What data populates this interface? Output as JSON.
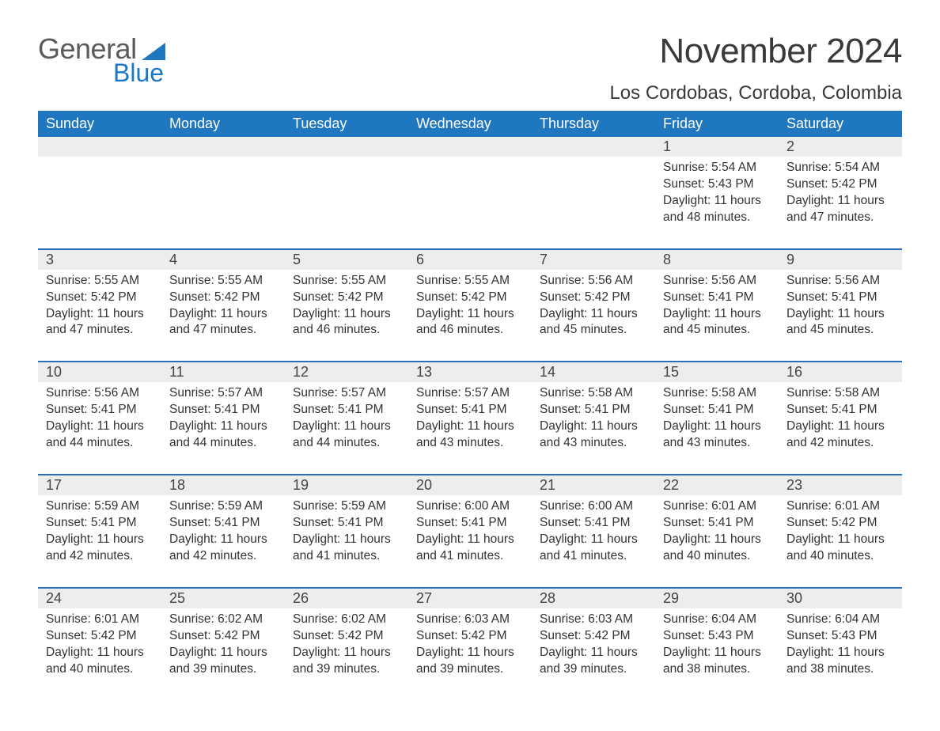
{
  "brand": {
    "part1": "General",
    "part2": "Blue",
    "triangle_color": "#1f77c0"
  },
  "title": "November 2024",
  "location": "Los Cordobas, Cordoba, Colombia",
  "days_of_week": [
    "Sunday",
    "Monday",
    "Tuesday",
    "Wednesday",
    "Thursday",
    "Friday",
    "Saturday"
  ],
  "colors": {
    "header_bg": "#1f77c0",
    "header_text": "#ffffff",
    "row_gray": "#eceeee",
    "row_border": "#2a6db8",
    "text": "#333333"
  },
  "weeks": [
    {
      "days": [
        {
          "num": "",
          "empty": true
        },
        {
          "num": "",
          "empty": true
        },
        {
          "num": "",
          "empty": true
        },
        {
          "num": "",
          "empty": true
        },
        {
          "num": "",
          "empty": true
        },
        {
          "num": "1",
          "sunrise": "Sunrise: 5:54 AM",
          "sunset": "Sunset: 5:43 PM",
          "daylight1": "Daylight: 11 hours",
          "daylight2": "and 48 minutes."
        },
        {
          "num": "2",
          "sunrise": "Sunrise: 5:54 AM",
          "sunset": "Sunset: 5:42 PM",
          "daylight1": "Daylight: 11 hours",
          "daylight2": "and 47 minutes."
        }
      ]
    },
    {
      "days": [
        {
          "num": "3",
          "sunrise": "Sunrise: 5:55 AM",
          "sunset": "Sunset: 5:42 PM",
          "daylight1": "Daylight: 11 hours",
          "daylight2": "and 47 minutes."
        },
        {
          "num": "4",
          "sunrise": "Sunrise: 5:55 AM",
          "sunset": "Sunset: 5:42 PM",
          "daylight1": "Daylight: 11 hours",
          "daylight2": "and 47 minutes."
        },
        {
          "num": "5",
          "sunrise": "Sunrise: 5:55 AM",
          "sunset": "Sunset: 5:42 PM",
          "daylight1": "Daylight: 11 hours",
          "daylight2": "and 46 minutes."
        },
        {
          "num": "6",
          "sunrise": "Sunrise: 5:55 AM",
          "sunset": "Sunset: 5:42 PM",
          "daylight1": "Daylight: 11 hours",
          "daylight2": "and 46 minutes."
        },
        {
          "num": "7",
          "sunrise": "Sunrise: 5:56 AM",
          "sunset": "Sunset: 5:42 PM",
          "daylight1": "Daylight: 11 hours",
          "daylight2": "and 45 minutes."
        },
        {
          "num": "8",
          "sunrise": "Sunrise: 5:56 AM",
          "sunset": "Sunset: 5:41 PM",
          "daylight1": "Daylight: 11 hours",
          "daylight2": "and 45 minutes."
        },
        {
          "num": "9",
          "sunrise": "Sunrise: 5:56 AM",
          "sunset": "Sunset: 5:41 PM",
          "daylight1": "Daylight: 11 hours",
          "daylight2": "and 45 minutes."
        }
      ]
    },
    {
      "days": [
        {
          "num": "10",
          "sunrise": "Sunrise: 5:56 AM",
          "sunset": "Sunset: 5:41 PM",
          "daylight1": "Daylight: 11 hours",
          "daylight2": "and 44 minutes."
        },
        {
          "num": "11",
          "sunrise": "Sunrise: 5:57 AM",
          "sunset": "Sunset: 5:41 PM",
          "daylight1": "Daylight: 11 hours",
          "daylight2": "and 44 minutes."
        },
        {
          "num": "12",
          "sunrise": "Sunrise: 5:57 AM",
          "sunset": "Sunset: 5:41 PM",
          "daylight1": "Daylight: 11 hours",
          "daylight2": "and 44 minutes."
        },
        {
          "num": "13",
          "sunrise": "Sunrise: 5:57 AM",
          "sunset": "Sunset: 5:41 PM",
          "daylight1": "Daylight: 11 hours",
          "daylight2": "and 43 minutes."
        },
        {
          "num": "14",
          "sunrise": "Sunrise: 5:58 AM",
          "sunset": "Sunset: 5:41 PM",
          "daylight1": "Daylight: 11 hours",
          "daylight2": "and 43 minutes."
        },
        {
          "num": "15",
          "sunrise": "Sunrise: 5:58 AM",
          "sunset": "Sunset: 5:41 PM",
          "daylight1": "Daylight: 11 hours",
          "daylight2": "and 43 minutes."
        },
        {
          "num": "16",
          "sunrise": "Sunrise: 5:58 AM",
          "sunset": "Sunset: 5:41 PM",
          "daylight1": "Daylight: 11 hours",
          "daylight2": "and 42 minutes."
        }
      ]
    },
    {
      "days": [
        {
          "num": "17",
          "sunrise": "Sunrise: 5:59 AM",
          "sunset": "Sunset: 5:41 PM",
          "daylight1": "Daylight: 11 hours",
          "daylight2": "and 42 minutes."
        },
        {
          "num": "18",
          "sunrise": "Sunrise: 5:59 AM",
          "sunset": "Sunset: 5:41 PM",
          "daylight1": "Daylight: 11 hours",
          "daylight2": "and 42 minutes."
        },
        {
          "num": "19",
          "sunrise": "Sunrise: 5:59 AM",
          "sunset": "Sunset: 5:41 PM",
          "daylight1": "Daylight: 11 hours",
          "daylight2": "and 41 minutes."
        },
        {
          "num": "20",
          "sunrise": "Sunrise: 6:00 AM",
          "sunset": "Sunset: 5:41 PM",
          "daylight1": "Daylight: 11 hours",
          "daylight2": "and 41 minutes."
        },
        {
          "num": "21",
          "sunrise": "Sunrise: 6:00 AM",
          "sunset": "Sunset: 5:41 PM",
          "daylight1": "Daylight: 11 hours",
          "daylight2": "and 41 minutes."
        },
        {
          "num": "22",
          "sunrise": "Sunrise: 6:01 AM",
          "sunset": "Sunset: 5:41 PM",
          "daylight1": "Daylight: 11 hours",
          "daylight2": "and 40 minutes."
        },
        {
          "num": "23",
          "sunrise": "Sunrise: 6:01 AM",
          "sunset": "Sunset: 5:42 PM",
          "daylight1": "Daylight: 11 hours",
          "daylight2": "and 40 minutes."
        }
      ]
    },
    {
      "days": [
        {
          "num": "24",
          "sunrise": "Sunrise: 6:01 AM",
          "sunset": "Sunset: 5:42 PM",
          "daylight1": "Daylight: 11 hours",
          "daylight2": "and 40 minutes."
        },
        {
          "num": "25",
          "sunrise": "Sunrise: 6:02 AM",
          "sunset": "Sunset: 5:42 PM",
          "daylight1": "Daylight: 11 hours",
          "daylight2": "and 39 minutes."
        },
        {
          "num": "26",
          "sunrise": "Sunrise: 6:02 AM",
          "sunset": "Sunset: 5:42 PM",
          "daylight1": "Daylight: 11 hours",
          "daylight2": "and 39 minutes."
        },
        {
          "num": "27",
          "sunrise": "Sunrise: 6:03 AM",
          "sunset": "Sunset: 5:42 PM",
          "daylight1": "Daylight: 11 hours",
          "daylight2": "and 39 minutes."
        },
        {
          "num": "28",
          "sunrise": "Sunrise: 6:03 AM",
          "sunset": "Sunset: 5:42 PM",
          "daylight1": "Daylight: 11 hours",
          "daylight2": "and 39 minutes."
        },
        {
          "num": "29",
          "sunrise": "Sunrise: 6:04 AM",
          "sunset": "Sunset: 5:43 PM",
          "daylight1": "Daylight: 11 hours",
          "daylight2": "and 38 minutes."
        },
        {
          "num": "30",
          "sunrise": "Sunrise: 6:04 AM",
          "sunset": "Sunset: 5:43 PM",
          "daylight1": "Daylight: 11 hours",
          "daylight2": "and 38 minutes."
        }
      ]
    }
  ]
}
